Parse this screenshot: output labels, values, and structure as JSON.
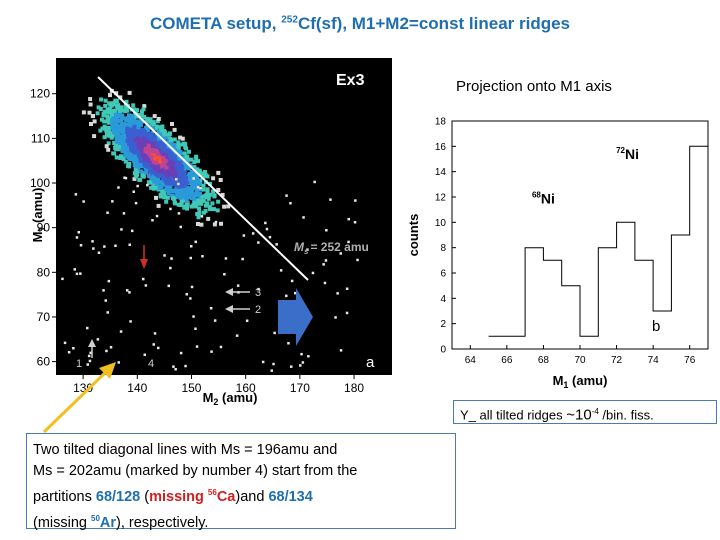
{
  "title": {
    "prefix": "COMETA setup, ",
    "sup": "252",
    "suffix": "Cf(sf), M1+M2=const linear ridges"
  },
  "heatmap": {
    "panel_tag": "Ex3",
    "letter": "a",
    "ms_label": "= 252 amu",
    "ms_symbol": "M",
    "ms_sub": "s",
    "markers": [
      "1",
      "2",
      "3",
      "4"
    ],
    "x_axis": {
      "label_main": "M",
      "label_sub": "2",
      "label_unit": " (amu)",
      "ticks": [
        "130",
        "140",
        "150",
        "160",
        "170",
        "180"
      ],
      "range": [
        125,
        187
      ]
    },
    "y_axis": {
      "label_main": "M",
      "label_sub": "1",
      "label_unit": " (amu)",
      "ticks": [
        "60",
        "70",
        "80",
        "90",
        "100",
        "110",
        "120"
      ],
      "range": [
        57,
        128
      ]
    },
    "colors": {
      "bg": "#000000",
      "line": "#ffffff",
      "arrow": "#d03020",
      "big_arrow": "#3a6ec8"
    }
  },
  "projection_title": "Projection onto M1 axis",
  "chart_data": {
    "type": "line",
    "title": "Projection onto M1 axis",
    "xlabel_main": "M",
    "xlabel_sub": "1",
    "xlabel_unit": " (amu)",
    "ylabel": "counts",
    "x_ticks": [
      "64",
      "66",
      "68",
      "70",
      "72",
      "74",
      "76"
    ],
    "y_ticks": [
      "0",
      "2",
      "4",
      "6",
      "8",
      "10",
      "12",
      "14",
      "16",
      "18"
    ],
    "xlim": [
      63,
      77
    ],
    "ylim": [
      0,
      18
    ],
    "step_edges": [
      65,
      66,
      67,
      68,
      69,
      70,
      71,
      72,
      73,
      74,
      75,
      76,
      77
    ],
    "step_values": [
      1,
      1,
      8,
      7,
      5,
      1,
      8,
      10,
      7,
      3,
      9,
      16
    ],
    "annotations": [
      {
        "mass": "68",
        "element": "Ni",
        "x": 68,
        "y": 11.5
      },
      {
        "mass": "72",
        "element": "Ni",
        "x": 72.6,
        "y": 15
      }
    ],
    "letter": "b"
  },
  "yield_text": {
    "prefix": "Y_ ",
    "middle": "all tilted ridges ",
    "approx": "~10",
    "exp": "-4",
    "suffix": " /bin. fiss."
  },
  "description": {
    "line1": "Two tilted diagonal lines with Ms = 196amu and",
    "line2": "Ms = 202amu (marked by number 4) start from the",
    "line3_a": "partitions ",
    "p1": "68/128",
    "line3_b": " (",
    "missing_red": "missing ",
    "ca_sup": "56",
    "ca": "Ca",
    "line3_c": ")and ",
    "p2": "68/134",
    "line4_a": "(missing ",
    "ar_sup": "50",
    "ar": "Ar",
    "line4_b": "), respectively."
  },
  "colors": {
    "title": "#1f6fb0",
    "highlight_red": "#d41e1e",
    "box_border": "#4a7ab8",
    "pointer": "#f2c01e"
  }
}
